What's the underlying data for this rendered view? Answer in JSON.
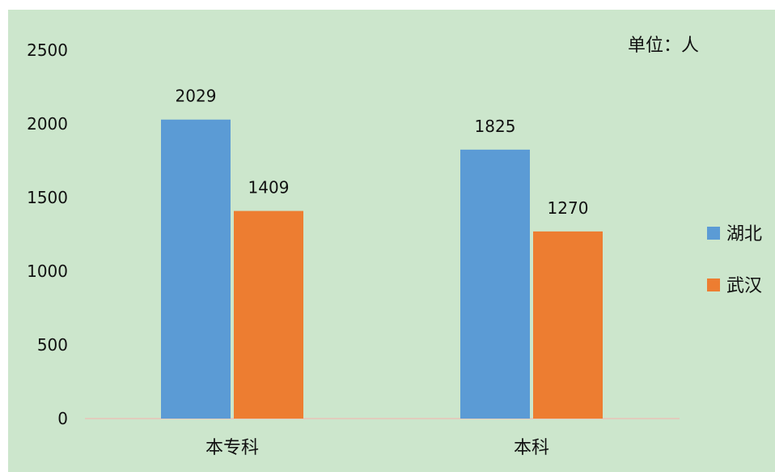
{
  "chart_data": {
    "type": "bar",
    "title": "",
    "unit_note": "单位：人",
    "categories": [
      "本专科",
      "本科"
    ],
    "series": [
      {
        "name": "湖北",
        "color": "#5b9bd5",
        "values": [
          2029,
          1825
        ]
      },
      {
        "name": "武汉",
        "color": "#ed7d31",
        "values": [
          1409,
          1270
        ]
      }
    ],
    "ylim": [
      0,
      2500
    ],
    "yticks": [
      0,
      500,
      1000,
      1500,
      2000,
      2500
    ],
    "grid": false,
    "legend_position": "right",
    "data_labels": true,
    "background_color": "#cce6cc"
  }
}
